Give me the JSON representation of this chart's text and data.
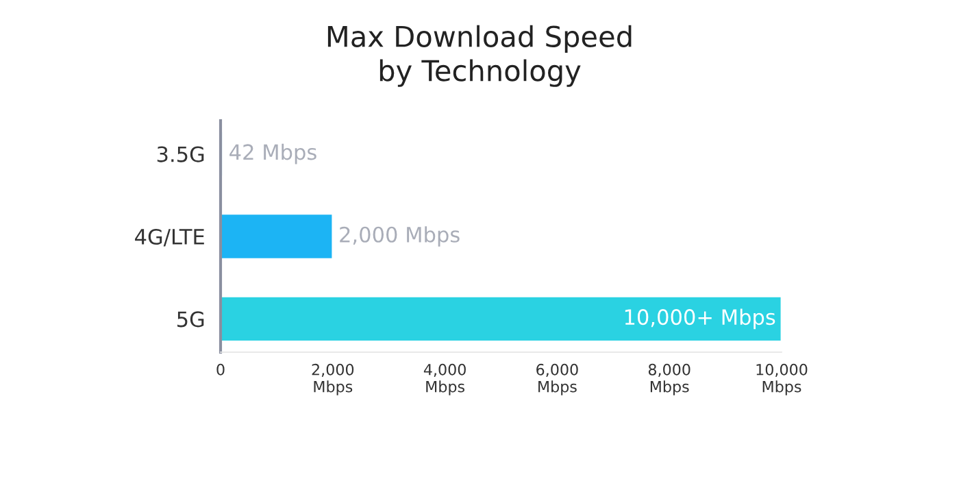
{
  "chart_data": {
    "type": "bar",
    "orientation": "horizontal",
    "title": "Max Download Speed\nby Technology",
    "categories": [
      "3.5G",
      "4G/LTE",
      "5G"
    ],
    "values": [
      42,
      2000,
      10000
    ],
    "colors": [
      "#1cb4f4",
      "#1cb4f4",
      "#2ad2e2"
    ],
    "value_labels": [
      "42 Mbps",
      "2,000 Mbps",
      "10,000+ Mbps"
    ],
    "xlim": [
      0,
      10000
    ],
    "xticks": [
      0,
      {
        "value": 2000,
        "label": "2,000\nMbps"
      },
      {
        "value": 4000,
        "label": "4,000\nMbps"
      },
      {
        "value": 6000,
        "label": "6,000\nMbps"
      },
      {
        "value": 8000,
        "label": "8,000\nMbps"
      },
      {
        "value": 10000,
        "label": "10,000\nMbps"
      }
    ],
    "grid": false,
    "legend": false
  }
}
